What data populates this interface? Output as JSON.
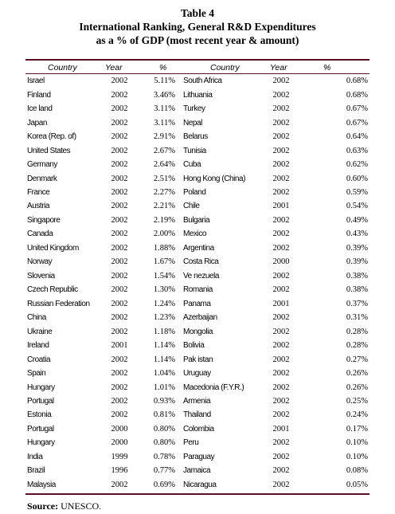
{
  "table_label": "Table 4",
  "title_line1": "International Ranking, General R&D Expenditures",
  "title_line2": "as a % of GDP (most recent year & amount)",
  "headers": {
    "country_left": "Country",
    "year_left": "Year",
    "pct_left": "%",
    "country_right": "Country",
    "year_right": "Year",
    "pct_right": "%"
  },
  "rows": [
    {
      "c1": "Israel",
      "y1": "2002",
      "p1": "5.11%",
      "c2": "South Africa",
      "y2": "2002",
      "p2": "0.68%"
    },
    {
      "c1": "Finland",
      "y1": "2002",
      "p1": "3.46%",
      "c2": "Lithuania",
      "y2": "2002",
      "p2": "0.68%"
    },
    {
      "c1": "Ice land",
      "y1": "2002",
      "p1": "3.11%",
      "c2": "Turkey",
      "y2": "2002",
      "p2": "0.67%"
    },
    {
      "c1": "Japan",
      "y1": "2002",
      "p1": "3.11%",
      "c2": "Nepal",
      "y2": "2002",
      "p2": "0.67%"
    },
    {
      "c1": "Korea (Rep. of)",
      "y1": "2002",
      "p1": "2.91%",
      "c2": "Belarus",
      "y2": "2002",
      "p2": "0.64%"
    },
    {
      "c1": "United States",
      "y1": "2002",
      "p1": "2.67%",
      "c2": "Tunisia",
      "y2": "2002",
      "p2": "0.63%"
    },
    {
      "c1": "Germany",
      "y1": "2002",
      "p1": "2.64%",
      "c2": "Cuba",
      "y2": "2002",
      "p2": "0.62%"
    },
    {
      "c1": "Denmark",
      "y1": "2002",
      "p1": "2.51%",
      "c2": "Hong Kong (China)",
      "y2": "2002",
      "p2": "0.60%"
    },
    {
      "c1": "France",
      "y1": "2002",
      "p1": "2.27%",
      "c2": "Poland",
      "y2": "2002",
      "p2": "0.59%"
    },
    {
      "c1": "Austria",
      "y1": "2002",
      "p1": "2.21%",
      "c2": "Chile",
      "y2": "2001",
      "p2": "0.54%"
    },
    {
      "c1": "Singapore",
      "y1": "2002",
      "p1": "2.19%",
      "c2": "Bulgaria",
      "y2": "2002",
      "p2": "0.49%"
    },
    {
      "c1": "Canada",
      "y1": "2002",
      "p1": "2.00%",
      "c2": "Mexico",
      "y2": "2002",
      "p2": "0.43%"
    },
    {
      "c1": "United Kingdom",
      "y1": "2002",
      "p1": "1.88%",
      "c2": "Argentina",
      "y2": "2002",
      "p2": "0.39%"
    },
    {
      "c1": "Norway",
      "y1": "2002",
      "p1": "1.67%",
      "c2": "Costa Rica",
      "y2": "2000",
      "p2": "0.39%"
    },
    {
      "c1": "Slovenia",
      "y1": "2002",
      "p1": "1.54%",
      "c2": "Ve nezuela",
      "y2": "2002",
      "p2": "0.38%"
    },
    {
      "c1": "Czech Republic",
      "y1": "2002",
      "p1": "1.30%",
      "c2": "Romania",
      "y2": "2002",
      "p2": "0.38%"
    },
    {
      "c1": "Russian Federation",
      "y1": "2002",
      "p1": "1.24%",
      "c2": "Panama",
      "y2": "2001",
      "p2": "0.37%"
    },
    {
      "c1": "China",
      "y1": "2002",
      "p1": "1.23%",
      "c2": "Azerbaijan",
      "y2": "2002",
      "p2": "0.31%"
    },
    {
      "c1": "Ukraine",
      "y1": "2002",
      "p1": "1.18%",
      "c2": "Mongolia",
      "y2": "2002",
      "p2": "0.28%"
    },
    {
      "c1": "Ireland",
      "y1": "2001",
      "p1": "1.14%",
      "c2": "Bolivia",
      "y2": "2002",
      "p2": "0.28%"
    },
    {
      "c1": "Croatia",
      "y1": "2002",
      "p1": "1.14%",
      "c2": "Pak istan",
      "y2": "2002",
      "p2": "0.27%"
    },
    {
      "c1": "Spain",
      "y1": "2002",
      "p1": "1.04%",
      "c2": "Uruguay",
      "y2": "2002",
      "p2": "0.26%"
    },
    {
      "c1": "Hungary",
      "y1": "2002",
      "p1": "1.01%",
      "c2": "Macedonia (F.Y.R.)",
      "y2": "2002",
      "p2": "0.26%"
    },
    {
      "c1": "Portugal",
      "y1": "2002",
      "p1": "0.93%",
      "c2": "Armenia",
      "y2": "2002",
      "p2": "0.25%"
    },
    {
      "c1": "Estonia",
      "y1": "2002",
      "p1": "0.81%",
      "c2": "Thailand",
      "y2": "2002",
      "p2": "0.24%"
    },
    {
      "c1": "Portugal",
      "y1": "2000",
      "p1": "0.80%",
      "c2": "Colombia",
      "y2": "2001",
      "p2": "0.17%"
    },
    {
      "c1": "Hungary",
      "y1": "2000",
      "p1": "0.80%",
      "c2": "Peru",
      "y2": "2002",
      "p2": "0.10%"
    },
    {
      "c1": "India",
      "y1": "1999",
      "p1": "0.78%",
      "c2": "Paraguay",
      "y2": "2002",
      "p2": "0.10%"
    },
    {
      "c1": "Brazil",
      "y1": "1996",
      "p1": "0.77%",
      "c2": "Jamaica",
      "y2": "2002",
      "p2": "0.08%"
    },
    {
      "c1": "Malaysia",
      "y1": "2002",
      "p1": "0.69%",
      "c2": "Nicaragua",
      "y2": "2002",
      "p2": "0.05%"
    }
  ],
  "source_label": "Source:",
  "source_value": "UNESCO.",
  "colors": {
    "rule": "#5a0f24",
    "text": "#000000"
  }
}
